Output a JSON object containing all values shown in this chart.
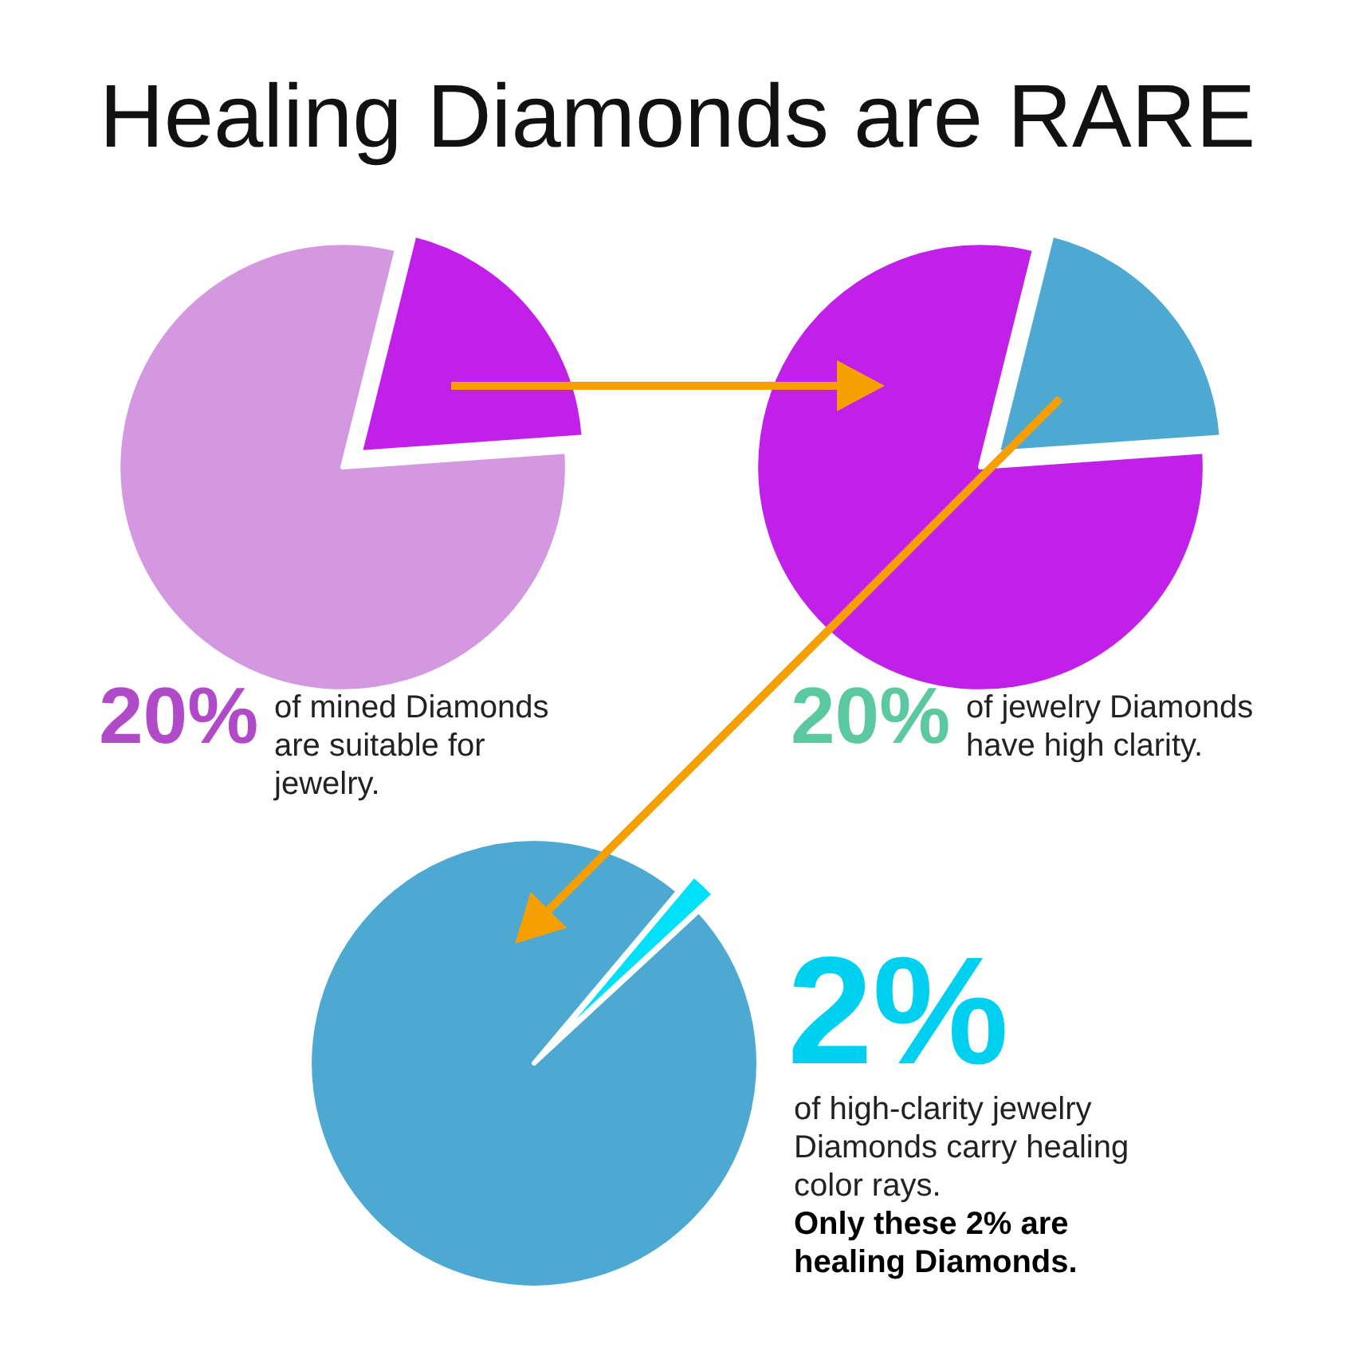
{
  "chart_data": [
    {
      "type": "pie",
      "title": "Healing Diamonds are RARE",
      "categories": [
        null,
        null
      ],
      "values": [
        20,
        80
      ],
      "colors": [
        "#c020e8",
        "#d498e0"
      ],
      "annotations": [
        "20%",
        "of mined Diamonds are suitable for jewelry."
      ]
    },
    {
      "type": "pie",
      "categories": [
        null,
        null
      ],
      "values": [
        20,
        80
      ],
      "colors": [
        "#4ea9d2",
        "#c020e8"
      ],
      "annotations": [
        "20%",
        "of jewelry Diamonds have high clarity."
      ]
    },
    {
      "type": "pie",
      "categories": [
        null,
        null
      ],
      "values": [
        2,
        98
      ],
      "colors": [
        "#00e0f8",
        "#4ea9d2"
      ],
      "annotations": [
        "2%",
        "of high-clarity jewelry Diamonds carry healing color rays.",
        "Only these 2% are healing Diamonds."
      ]
    }
  ]
}
